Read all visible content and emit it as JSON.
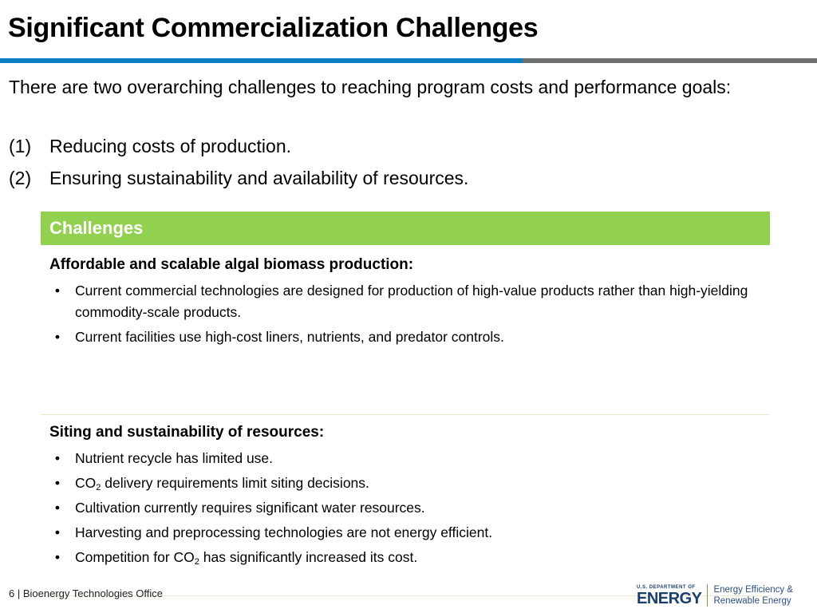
{
  "title": "Significant Commercialization Challenges",
  "intro": "There are two overarching challenges to reaching program costs and performance goals:",
  "items": [
    {
      "num": "(1)",
      "text": "Reducing costs of production."
    },
    {
      "num": "(2)",
      "text": "Ensuring sustainability and availability of resources."
    }
  ],
  "table": {
    "header": "Challenges",
    "sections": [
      {
        "heading": "Affordable and scalable algal biomass production:",
        "bullets": [
          "Current commercial technologies are designed for production of high-value products rather than high-yielding commodity-scale products.",
          "Current facilities use high-cost liners, nutrients, and predator controls."
        ]
      },
      {
        "heading": "Siting and sustainability of resources:",
        "bullets": [
          {
            "pre": "Nutrient recycle has limited use."
          },
          {
            "pre": "CO",
            "sub": "2",
            "post": " delivery requirements limit siting decisions."
          },
          {
            "pre": "Cultivation currently requires significant water resources."
          },
          {
            "pre": "Harvesting and preprocessing technologies are not energy efficient."
          },
          {
            "pre": "Competition for CO",
            "sub": "2",
            "post": " has significantly increased its cost."
          }
        ]
      }
    ]
  },
  "bullet_glyph": "•",
  "footer": {
    "page": "6",
    "separator": "|",
    "office": "Bioenergy Technologies Office"
  },
  "logo": {
    "dept": "U.S. DEPARTMENT OF",
    "name": "ENERGY",
    "line1": "Energy Efficiency &",
    "line2": "Renewable Energy"
  },
  "colors": {
    "accent_blue": "#0a7fc2",
    "rule_gray": "#6d6e70",
    "header_green": "#92d050",
    "doe_navy": "#1a3f6f"
  }
}
